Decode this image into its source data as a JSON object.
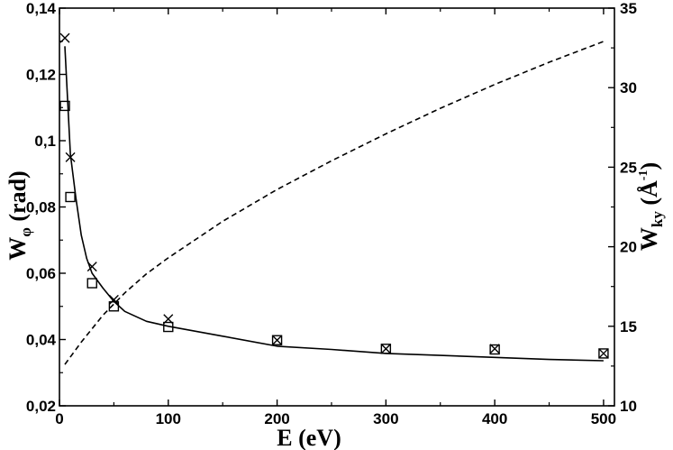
{
  "chart_data": {
    "type": "line",
    "title": "",
    "xlabel": "E (eV)",
    "ylabel_left": {
      "main": "W",
      "sub": "φ",
      "suffix": " (rad)"
    },
    "ylabel_right": {
      "main": "W",
      "sub": "ky",
      "open": " (",
      "unit": "Å",
      "sup": "-1",
      "close": ")"
    },
    "x_range": [
      0,
      510
    ],
    "y_left_range": [
      0.02,
      0.14
    ],
    "y_right_range": [
      10,
      35
    ],
    "x_ticks": [
      "0",
      "100",
      "200",
      "300",
      "400",
      "500"
    ],
    "y_left_ticks": [
      "0,02",
      "0,04",
      "0,06",
      "0,08",
      "0,1",
      "0,12",
      "0,14"
    ],
    "y_right_ticks": [
      "10",
      "15",
      "20",
      "25",
      "30",
      "35"
    ],
    "grid": false,
    "legend": "none",
    "series": [
      {
        "style": "solid",
        "axis": "left",
        "color": "#000000",
        "x": [
          5,
          10,
          15,
          20,
          25,
          30,
          40,
          50,
          60,
          70,
          80,
          100,
          150,
          200,
          250,
          300,
          350,
          400,
          450,
          500
        ],
        "y": [
          0.1285,
          0.096,
          0.083,
          0.0715,
          0.0645,
          0.06,
          0.0555,
          0.0515,
          0.0485,
          0.047,
          0.0455,
          0.044,
          0.041,
          0.038,
          0.037,
          0.0358,
          0.0352,
          0.0346,
          0.034,
          0.0336
        ]
      },
      {
        "style": "dashed",
        "axis": "right",
        "color": "#000000",
        "x": [
          5,
          20,
          40,
          60,
          80,
          100,
          150,
          200,
          250,
          300,
          350,
          400,
          450,
          500
        ],
        "y": [
          12.6,
          14.0,
          15.7,
          17.1,
          18.3,
          19.3,
          21.6,
          23.6,
          25.4,
          27.1,
          28.7,
          30.2,
          31.6,
          32.9
        ]
      },
      {
        "marker": "cross",
        "axis": "left",
        "x": [
          5,
          10,
          30,
          50,
          100,
          200,
          300,
          400,
          500
        ],
        "y": [
          0.131,
          0.095,
          0.062,
          0.052,
          0.0462,
          0.0398,
          0.0372,
          0.0372,
          0.0358
        ]
      },
      {
        "marker": "square",
        "axis": "left",
        "x": [
          5,
          10,
          30,
          50,
          100,
          200,
          300,
          400,
          500
        ],
        "y": [
          0.1105,
          0.083,
          0.057,
          0.05,
          0.0438,
          0.0398,
          0.0372,
          0.037,
          0.0358
        ]
      }
    ]
  }
}
